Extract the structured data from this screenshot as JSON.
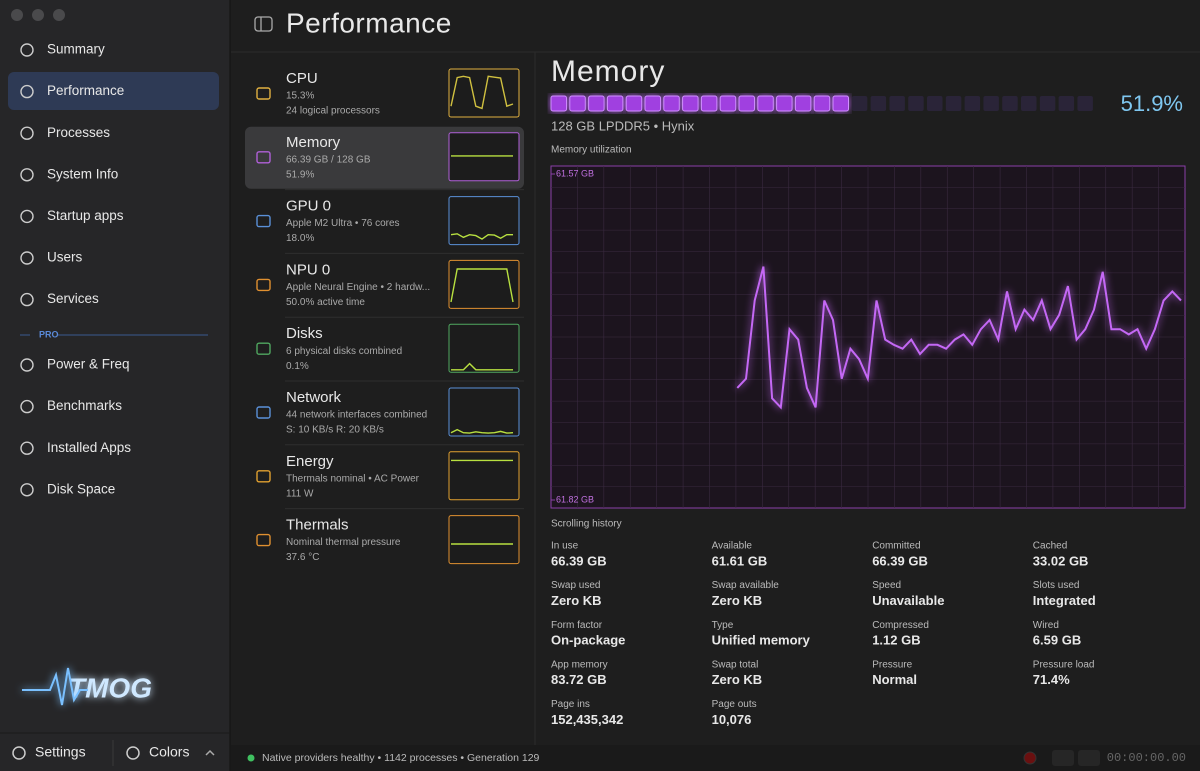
{
  "header": {
    "title": "Performance"
  },
  "sidebar": {
    "items": [
      "Summary",
      "Performance",
      "Processes",
      "System Info",
      "Startup apps",
      "Users",
      "Services"
    ],
    "section": "PRO",
    "pro_items": [
      "Power & Freq",
      "Benchmarks",
      "Installed Apps",
      "Disk Space"
    ],
    "logo": "TMOG",
    "footer": [
      "Settings",
      "Colors"
    ]
  },
  "devices": [
    {
      "name": "CPU",
      "line1": "15.3%",
      "line2": "24 logical processors",
      "color": "#e0b040",
      "spark": [
        20,
        85,
        88,
        85,
        20,
        15,
        88,
        86,
        84,
        20,
        25
      ]
    },
    {
      "name": "Memory",
      "line1": "66.39 GB / 128 GB",
      "line2": "51.9%",
      "color": "#b060d8",
      "spark": [
        52,
        52,
        52,
        52,
        52,
        52,
        52,
        52,
        52,
        52,
        52
      ]
    },
    {
      "name": "GPU 0",
      "line1": "Apple M2 Ultra • 76 cores",
      "line2": "18.0%",
      "color": "#5a90d8",
      "spark": [
        18,
        20,
        12,
        18,
        16,
        8,
        18,
        17,
        10,
        18,
        18
      ]
    },
    {
      "name": "NPU 0",
      "line1": "Apple Neural Engine • 2 hardw...",
      "line2": "50.0% active time",
      "color": "#e09030",
      "spark": [
        10,
        85,
        85,
        85,
        85,
        85,
        85,
        85,
        85,
        85,
        10
      ]
    },
    {
      "name": "Disks",
      "line1": "6 physical disks combined",
      "line2": "0.1%",
      "color": "#50a860",
      "spark": [
        1,
        1,
        1,
        15,
        1,
        1,
        1,
        1,
        1,
        1,
        1
      ]
    },
    {
      "name": "Network",
      "line1": "44 network interfaces combined",
      "line2": "S: 10 KB/s  R: 20 KB/s",
      "color": "#5a90d8",
      "spark": [
        3,
        10,
        3,
        2,
        5,
        3,
        2,
        3,
        6,
        2,
        3
      ]
    },
    {
      "name": "Energy",
      "line1": "Thermals nominal • AC Power",
      "line2": "111 W",
      "color": "#e0a030",
      "spark": [
        85,
        85,
        85,
        85,
        85,
        85,
        85,
        85,
        85,
        85,
        85
      ]
    },
    {
      "name": "Thermals",
      "line1": "Nominal thermal pressure",
      "line2": "37.6 °C",
      "color": "#e09030",
      "spark": [
        40,
        40,
        40,
        40,
        40,
        40,
        40,
        40,
        40,
        40,
        40
      ]
    }
  ],
  "detail": {
    "title": "Memory",
    "usage": {
      "value": 51.9,
      "label": "51.9%"
    },
    "subtitle": "128 GB LPDDR5 • Hynix",
    "chart_label": "Memory utilization",
    "footer": "Scrolling history",
    "yticks": [
      {
        "value": 61.57,
        "label": "61.57 GB"
      },
      {
        "value": 61.82,
        "label": "61.82 GB"
      }
    ],
    "history": [
      61.734,
      61.727,
      61.667,
      61.641,
      61.742,
      61.749,
      61.689,
      61.697,
      61.734,
      61.749,
      61.667,
      61.682,
      61.727,
      61.704,
      61.712,
      61.727,
      61.667,
      61.697,
      61.701,
      61.704,
      61.697,
      61.708,
      61.701,
      61.701,
      61.704,
      61.697,
      61.693,
      61.701,
      61.689,
      61.682,
      61.697,
      61.66,
      61.689,
      61.674,
      61.682,
      61.667,
      61.689,
      61.678,
      61.656,
      61.697,
      61.689,
      61.674,
      61.645,
      61.689,
      61.689,
      61.693,
      61.689,
      61.704,
      61.689,
      61.667,
      61.66,
      61.667
    ],
    "stats": [
      {
        "label": "In use",
        "value": "66.39 GB"
      },
      {
        "label": "Available",
        "value": "61.61 GB"
      },
      {
        "label": "Committed",
        "value": "66.39 GB"
      },
      {
        "label": "Cached",
        "value": "33.02 GB"
      },
      {
        "label": "Swap used",
        "value": "Zero KB"
      },
      {
        "label": "Swap available",
        "value": "Zero KB"
      },
      {
        "label": "Speed",
        "value": "Unavailable"
      },
      {
        "label": "Slots used",
        "value": "Integrated"
      },
      {
        "label": "Form factor",
        "value": "On-package"
      },
      {
        "label": "Type",
        "value": "Unified memory"
      },
      {
        "label": "Compressed",
        "value": "1.12 GB"
      },
      {
        "label": "Wired",
        "value": "6.59 GB"
      },
      {
        "label": "App memory",
        "value": "83.72 GB"
      },
      {
        "label": "Swap total",
        "value": "Zero KB"
      },
      {
        "label": "Pressure",
        "value": "Normal"
      },
      {
        "label": "Pressure load",
        "value": "71.4%"
      },
      {
        "label": "Page ins",
        "value": "152,435,342"
      },
      {
        "label": "Page outs",
        "value": "10,076"
      }
    ]
  },
  "status": {
    "text": "Native providers healthy • 1142 processes • Generation 129",
    "timer": "00:00:00.00"
  }
}
